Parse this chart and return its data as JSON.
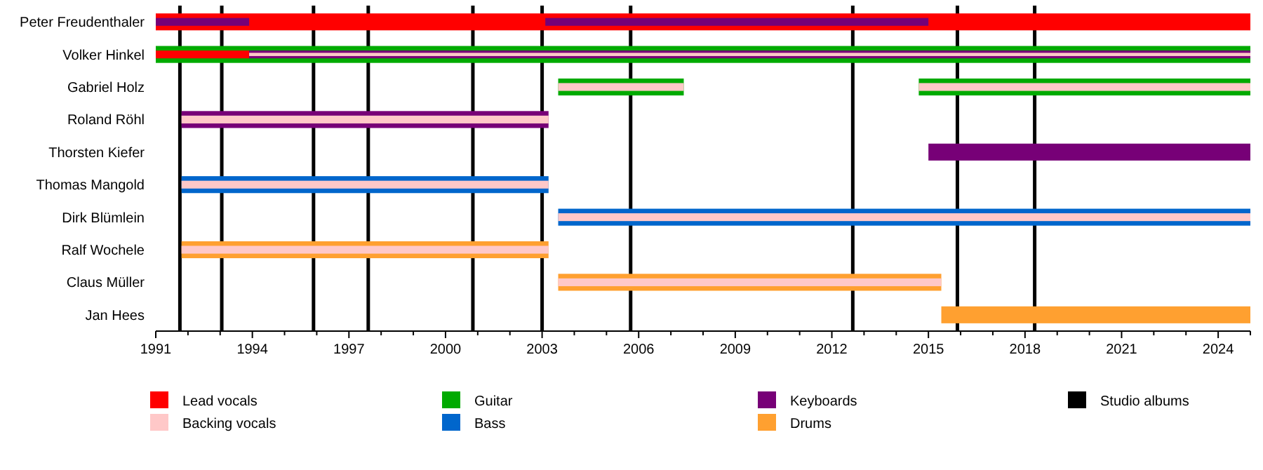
{
  "chart_data": {
    "type": "bar",
    "orientation": "horizontal",
    "categories": [
      "Peter Freudenthaler",
      "Volker Hinkel",
      "Gabriel Holz",
      "Roland Röhl",
      "Thorsten Kiefer",
      "Thomas Mangold",
      "Dirk Blümlein",
      "Ralf Wochele",
      "Claus Müller",
      "Jan Hees"
    ],
    "xlim": [
      1991,
      2025
    ],
    "xticks": [
      1991,
      {
        "value": 1992,
        "label": null
      },
      {
        "value": 1993,
        "label": null
      },
      1994,
      {
        "value": 1995,
        "label": null
      },
      {
        "value": 1996,
        "label": null
      },
      1997,
      {
        "value": 1998,
        "label": null
      },
      {
        "value": 1999,
        "label": null
      },
      2000,
      {
        "value": 2001,
        "label": null
      },
      {
        "value": 2002,
        "label": null
      },
      2003,
      {
        "value": 2004,
        "label": null
      },
      {
        "value": 2005,
        "label": null
      },
      2006,
      {
        "value": 2007,
        "label": null
      },
      {
        "value": 2008,
        "label": null
      },
      2009,
      {
        "value": 2010,
        "label": null
      },
      {
        "value": 2011,
        "label": null
      },
      2012,
      {
        "value": 2013,
        "label": null
      },
      {
        "value": 2014,
        "label": null
      },
      2015,
      {
        "value": 2016,
        "label": null
      },
      {
        "value": 2017,
        "label": null
      },
      2018,
      {
        "value": 2019,
        "label": null
      },
      {
        "value": 2020,
        "label": null
      },
      2021,
      {
        "value": 2022,
        "label": null
      },
      {
        "value": 2023,
        "label": null
      },
      2024,
      {
        "value": 2025,
        "label": null
      }
    ],
    "series": [
      {
        "name": "Lead vocals",
        "color": "#ff0000",
        "base": [
          1991,
          1991,
          null,
          null,
          null,
          null,
          null,
          null,
          null,
          null
        ],
        "values": [
          34,
          2.9,
          null,
          null,
          null,
          null,
          null,
          null,
          null,
          null
        ]
      },
      {
        "name": "Backing vocals",
        "color": "#ffc8c8",
        "base": [
          null,
          1993.9,
          2003.5,
          1991.8,
          null,
          1991.8,
          2003.5,
          1991.8,
          2003.5,
          null
        ],
        "values": [
          null,
          31.1,
          3.9,
          11.4,
          null,
          11.4,
          21.5,
          11.4,
          11.9,
          null
        ]
      },
      {
        "name": "Guitar",
        "color": "#00aa00",
        "base": [
          null,
          1991,
          2003.5,
          null,
          null,
          null,
          null,
          null,
          null,
          null
        ],
        "values": [
          null,
          34,
          3.9,
          null,
          null,
          null,
          null,
          null,
          null,
          null
        ]
      },
      {
        "name": "Bass",
        "color": "#0066cc",
        "base": [
          null,
          null,
          null,
          null,
          null,
          1991.8,
          2003.5,
          null,
          null,
          null
        ],
        "values": [
          null,
          null,
          null,
          null,
          null,
          11.4,
          21.5,
          null,
          null,
          null
        ]
      },
      {
        "name": "Keyboards",
        "color": "#770077",
        "base": [
          1991,
          1993.9,
          null,
          1991.8,
          2015,
          null,
          null,
          null,
          null,
          null
        ],
        "values": [
          2.9,
          31.1,
          null,
          11.4,
          10,
          null,
          null,
          null,
          null,
          null
        ]
      },
      {
        "name": "Drums",
        "color": "#ffa030",
        "base": [
          null,
          null,
          null,
          null,
          null,
          null,
          null,
          1991.8,
          2003.5,
          2015.4
        ],
        "values": [
          null,
          null,
          null,
          null,
          null,
          null,
          null,
          11.4,
          11.9,
          9.6
        ]
      },
      {
        "color": "#ffc8c8",
        "base": [
          null,
          null,
          2014.7,
          null,
          null,
          null,
          null,
          null,
          null,
          null
        ],
        "values": [
          null,
          null,
          10.3,
          null,
          null,
          null,
          null,
          null,
          null,
          null
        ]
      },
      {
        "color": "#00aa00",
        "base": [
          null,
          null,
          2014.7,
          null,
          null,
          null,
          null,
          null,
          null,
          null
        ],
        "values": [
          null,
          null,
          10.3,
          null,
          null,
          null,
          null,
          null,
          null,
          null
        ]
      },
      {
        "color": "#770077",
        "base": [
          2003.1,
          null,
          null,
          null,
          null,
          null,
          null,
          null,
          null,
          null
        ],
        "values": [
          11.9,
          null,
          null,
          null,
          null,
          null,
          null,
          null,
          null,
          null
        ]
      }
    ],
    "ref_lines": [
      {
        "axis": "x",
        "value": 1991.75,
        "label": "Studio albums",
        "color": "#000000"
      },
      {
        "axis": "x",
        "value": 1993.05,
        "color": "#000000"
      },
      {
        "axis": "x",
        "value": 1995.9,
        "color": "#000000"
      },
      {
        "axis": "x",
        "value": 1997.6,
        "color": "#000000"
      },
      {
        "axis": "x",
        "value": 2000.85,
        "color": "#000000"
      },
      {
        "axis": "x",
        "value": 2003.0,
        "color": "#000000"
      },
      {
        "axis": "x",
        "value": 2005.75,
        "color": "#000000"
      },
      {
        "axis": "x",
        "value": 2012.65,
        "color": "#000000"
      },
      {
        "axis": "x",
        "value": 2015.9,
        "color": "#000000"
      },
      {
        "axis": "x",
        "value": 2018.3,
        "color": "#000000"
      }
    ],
    "legend": "bottom"
  }
}
